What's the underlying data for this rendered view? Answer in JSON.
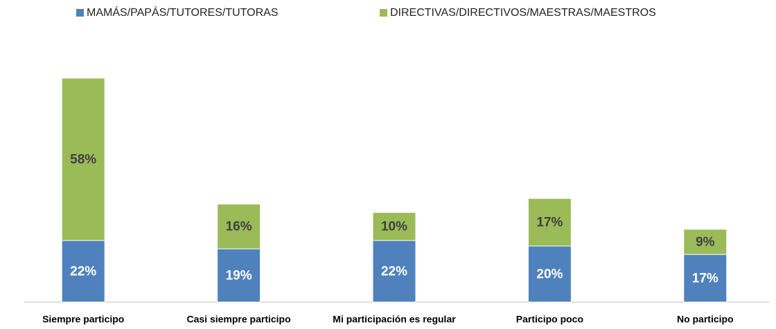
{
  "chart_data": {
    "type": "stacked_bar",
    "categories": [
      "Siempre participo",
      "Casi siempre participo",
      "Mi participación es regular",
      "Participo poco",
      "No participo"
    ],
    "series": [
      {
        "name": "MAMÁS/PAPÁS/TUTORES/TUTORAS",
        "color": "#4f81bd",
        "values": [
          22,
          19,
          22,
          20,
          17
        ],
        "value_labels": [
          "22%",
          "19%",
          "22%",
          "20%",
          "17%"
        ]
      },
      {
        "name": "DIRECTIVAS/DIRECTIVOS/MAESTRAS/MAESTROS",
        "color": "#9bbb59",
        "values": [
          58,
          16,
          10,
          17,
          9
        ],
        "value_labels": [
          "58%",
          "16%",
          "10%",
          "17%",
          "9%"
        ]
      }
    ],
    "ylim": [
      0,
      80
    ],
    "legend": "top"
  }
}
